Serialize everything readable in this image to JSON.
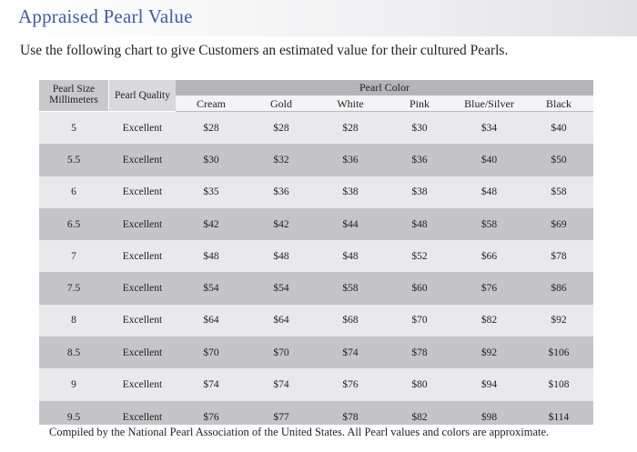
{
  "title": "Appraised Pearl Value",
  "intro": "Use the following chart to give Customers an estimated value for their cultured Pearls.",
  "table": {
    "size_header_line1": "Pearl Size",
    "size_header_line2": "Millimeters",
    "quality_header": "Pearl Quality",
    "color_group_header": "Pearl Color",
    "color_columns": [
      "Cream",
      "Gold",
      "White",
      "Pink",
      "Blue/Silver",
      "Black"
    ],
    "rows": [
      {
        "size": "5",
        "quality": "Excellent",
        "values": [
          "$28",
          "$28",
          "$28",
          "$30",
          "$34",
          "$40"
        ]
      },
      {
        "size": "5.5",
        "quality": "Excellent",
        "values": [
          "$30",
          "$32",
          "$36",
          "$36",
          "$40",
          "$50"
        ]
      },
      {
        "size": "6",
        "quality": "Excellent",
        "values": [
          "$35",
          "$36",
          "$38",
          "$38",
          "$48",
          "$58"
        ]
      },
      {
        "size": "6.5",
        "quality": "Excellent",
        "values": [
          "$42",
          "$42",
          "$44",
          "$48",
          "$58",
          "$69"
        ]
      },
      {
        "size": "7",
        "quality": "Excellent",
        "values": [
          "$48",
          "$48",
          "$48",
          "$52",
          "$66",
          "$78"
        ]
      },
      {
        "size": "7.5",
        "quality": "Excellent",
        "values": [
          "$54",
          "$54",
          "$58",
          "$60",
          "$76",
          "$86"
        ]
      },
      {
        "size": "8",
        "quality": "Excellent",
        "values": [
          "$64",
          "$64",
          "$68",
          "$70",
          "$82",
          "$92"
        ]
      },
      {
        "size": "8.5",
        "quality": "Excellent",
        "values": [
          "$70",
          "$70",
          "$74",
          "$78",
          "$92",
          "$106"
        ]
      },
      {
        "size": "9",
        "quality": "Excellent",
        "values": [
          "$74",
          "$74",
          "$76",
          "$80",
          "$94",
          "$108"
        ]
      },
      {
        "size": "9.5",
        "quality": "Excellent",
        "values": [
          "$76",
          "$77",
          "$78",
          "$82",
          "$98",
          "$114"
        ]
      }
    ]
  },
  "footnote": "Compiled by the National Pearl Association of the United States.  All Pearl values and colors are approximate.",
  "colors": {
    "title": "#3d5cab",
    "row_light": "#e9e9ec",
    "row_dark": "#c5c5c9",
    "header_band": "#b5b5b9"
  }
}
